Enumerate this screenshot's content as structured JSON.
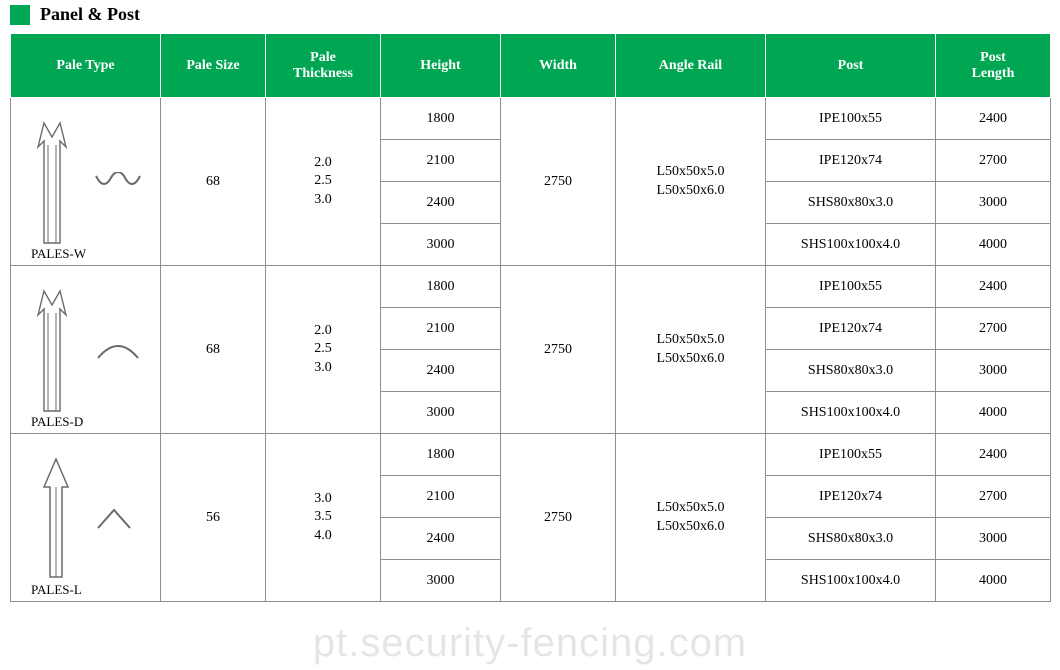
{
  "title": "Panel & Post",
  "accentColor": "#00a651",
  "headerBg": "#00a651",
  "headerFg": "#ffffff",
  "borderColor": "#8f8f8f",
  "headers": {
    "paleType": "Pale Type",
    "paleSize": "Pale Size",
    "paleThickness": "Pale\nThickness",
    "height": "Height",
    "width": "Width",
    "angleRail": "Angle Rail",
    "post": "Post",
    "postLength": "Post\nLength"
  },
  "columnWidths": {
    "paleType": 150,
    "paleSize": 105,
    "paleThickness": 115,
    "height": 120,
    "width": 115,
    "angleRail": 150,
    "post": 170,
    "postLength": 115
  },
  "rowHeightSub": 42,
  "profiles": [
    {
      "name": "PALES-W",
      "profileShape": "W",
      "paleSize": "68",
      "thickness": [
        "2.0",
        "2.5",
        "3.0"
      ],
      "width": "2750",
      "angleRail": [
        "L50x50x5.0",
        "L50x50x6.0"
      ],
      "rows": [
        {
          "height": "1800",
          "post": "IPE100x55",
          "postLength": "2400"
        },
        {
          "height": "2100",
          "post": "IPE120x74",
          "postLength": "2700"
        },
        {
          "height": "2400",
          "post": "SHS80x80x3.0",
          "postLength": "3000"
        },
        {
          "height": "3000",
          "post": "SHS100x100x4.0",
          "postLength": "4000"
        }
      ]
    },
    {
      "name": "PALES-D",
      "profileShape": "D",
      "paleSize": "68",
      "thickness": [
        "2.0",
        "2.5",
        "3.0"
      ],
      "width": "2750",
      "angleRail": [
        "L50x50x5.0",
        "L50x50x6.0"
      ],
      "rows": [
        {
          "height": "1800",
          "post": "IPE100x55",
          "postLength": "2400"
        },
        {
          "height": "2100",
          "post": "IPE120x74",
          "postLength": "2700"
        },
        {
          "height": "2400",
          "post": "SHS80x80x3.0",
          "postLength": "3000"
        },
        {
          "height": "3000",
          "post": "SHS100x100x4.0",
          "postLength": "4000"
        }
      ]
    },
    {
      "name": "PALES-L",
      "profileShape": "L",
      "paleSize": "56",
      "thickness": [
        "3.0",
        "3.5",
        "4.0"
      ],
      "width": "2750",
      "angleRail": [
        "L50x50x5.0",
        "L50x50x6.0"
      ],
      "rows": [
        {
          "height": "1800",
          "post": "IPE100x55",
          "postLength": "2400"
        },
        {
          "height": "2100",
          "post": "IPE120x74",
          "postLength": "2700"
        },
        {
          "height": "2400",
          "post": "SHS80x80x3.0",
          "postLength": "3000"
        },
        {
          "height": "3000",
          "post": "SHS100x100x4.0",
          "postLength": "4000"
        }
      ]
    }
  ],
  "watermark": "pt.security-fencing.com",
  "fontSizes": {
    "title": 18,
    "header": 14,
    "cell": 14,
    "label": 13,
    "watermark": 40
  }
}
